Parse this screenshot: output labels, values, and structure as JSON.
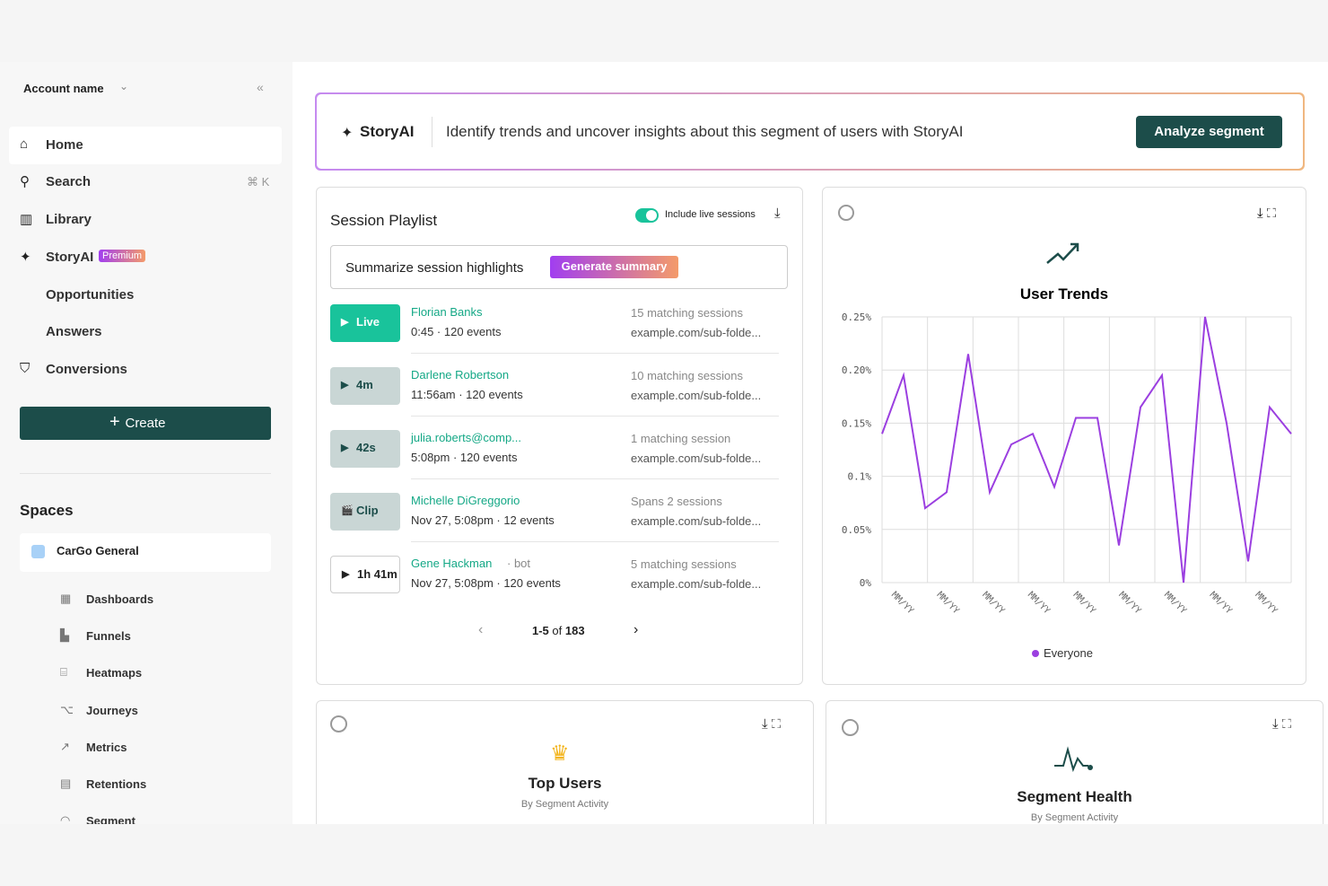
{
  "sidebar": {
    "account": "Account name",
    "nav": [
      {
        "label": "Home"
      },
      {
        "label": "Search",
        "shortcut": "⌘ K"
      },
      {
        "label": "Library"
      },
      {
        "label": "StoryAI",
        "badge": "Premium"
      },
      {
        "label": "Opportunities"
      },
      {
        "label": "Answers"
      },
      {
        "label": "Conversions"
      }
    ],
    "create": "Create",
    "spaces_title": "Spaces",
    "space": "CarGo General",
    "space_items": [
      "Dashboards",
      "Funnels",
      "Heatmaps",
      "Journeys",
      "Metrics",
      "Retentions",
      "Segment"
    ]
  },
  "banner": {
    "brand": "StoryAI",
    "text": "Identify trends and uncover insights about this segment of users with StoryAI",
    "button": "Analyze segment"
  },
  "playlist": {
    "title": "Session Playlist",
    "toggle": "Include live sessions",
    "summary": "Summarize session highlights",
    "summary_button": "Generate summary",
    "sessions": [
      {
        "badge": "Live",
        "name": "Florian Banks",
        "meta": "0:45 · 120 events",
        "matches": "15 matching sessions",
        "url": "example.com/sub-folde..."
      },
      {
        "badge": "4m",
        "name": "Darlene Robertson",
        "meta": "11:56am · 120 events",
        "matches": "10 matching sessions",
        "url": "example.com/sub-folde..."
      },
      {
        "badge": "42s",
        "name": "julia.roberts@comp...",
        "meta": "5:08pm · 120 events",
        "matches": "1 matching session",
        "url": "example.com/sub-folde..."
      },
      {
        "badge": "Clip",
        "name": "Michelle DiGreggorio",
        "meta": "Nov 27, 5:08pm · 12 events",
        "matches": "Spans 2 sessions",
        "url": "example.com/sub-folde..."
      },
      {
        "badge": "1h 41m",
        "name": "Gene Hackman",
        "tag": "· bot",
        "meta": "Nov 27, 5:08pm · 120 events",
        "matches": "5 matching sessions",
        "url": "example.com/sub-folde..."
      }
    ],
    "pagination": {
      "range": "1-5",
      "of": "of",
      "total": "183"
    }
  },
  "user_trends": {
    "type": "line",
    "title": "User Trends",
    "categories": [
      "MM/YY",
      "MM/YY",
      "MM/YY",
      "MM/YY",
      "MM/YY",
      "MM/YY",
      "MM/YY",
      "MM/YY",
      "MM/YY"
    ],
    "series": [
      {
        "name": "Everyone",
        "color": "#9b3fe0",
        "values": [
          0.14,
          0.195,
          0.07,
          0.085,
          0.215,
          0.085,
          0.13,
          0.14,
          0.09,
          0.155,
          0.155,
          0.035,
          0.165,
          0.195,
          0,
          0.25,
          0.15,
          0.02,
          0.165,
          0.14
        ]
      }
    ],
    "ylim": [
      0,
      0.25
    ],
    "yticks": [
      {
        "value": 0,
        "label": "0%"
      },
      {
        "value": 0.05,
        "label": "0.05%"
      },
      {
        "value": 0.1,
        "label": "0.1%"
      },
      {
        "value": 0.15,
        "label": "0.15%"
      },
      {
        "value": 0.2,
        "label": "0.20%"
      },
      {
        "value": 0.25,
        "label": "0.25%"
      }
    ],
    "grid": true
  },
  "top_users": {
    "title": "Top Users",
    "subtitle": "By Segment Activity"
  },
  "segment_health": {
    "title": "Segment Health",
    "subtitle": "By Segment Activity"
  }
}
